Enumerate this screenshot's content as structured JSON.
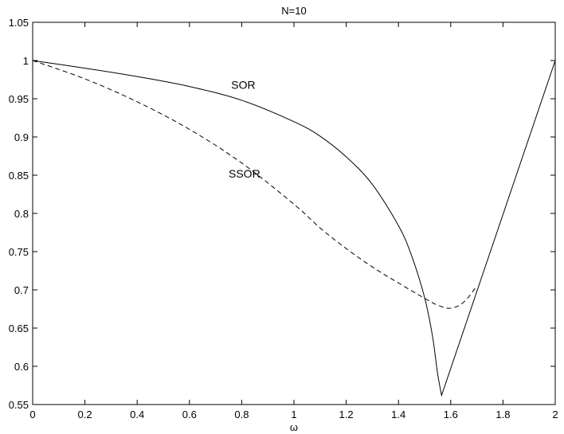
{
  "chart_data": {
    "type": "line",
    "title": "N=10",
    "xlabel": "ω",
    "ylabel": "",
    "xlim": [
      0,
      2
    ],
    "ylim": [
      0.55,
      1.05
    ],
    "grid": false,
    "x_ticks": [
      "0",
      "0.2",
      "0.4",
      "0.6",
      "0.8",
      "1",
      "1.2",
      "1.4",
      "1.6",
      "1.8",
      "2"
    ],
    "y_ticks": [
      "0.55",
      "0.6",
      "0.65",
      "0.7",
      "0.75",
      "0.8",
      "0.85",
      "0.9",
      "0.95",
      "1",
      "1.05"
    ],
    "series": [
      {
        "name": "SOR",
        "style": "solid",
        "color": "#000000",
        "x": [
          0,
          0.2,
          0.4,
          0.6,
          0.8,
          1.0,
          1.1,
          1.2,
          1.3,
          1.4,
          1.45,
          1.5,
          1.53,
          1.55,
          1.565,
          2.0
        ],
        "y": [
          1.0,
          0.99,
          0.979,
          0.966,
          0.948,
          0.92,
          0.901,
          0.874,
          0.838,
          0.784,
          0.745,
          0.69,
          0.64,
          0.59,
          0.562,
          1.0
        ]
      },
      {
        "name": "SSOR",
        "style": "dashed",
        "color": "#000000",
        "x": [
          0,
          0.2,
          0.4,
          0.6,
          0.8,
          1.0,
          1.1,
          1.2,
          1.3,
          1.4,
          1.5,
          1.55,
          1.6,
          1.65,
          1.7
        ],
        "y": [
          1.0,
          0.976,
          0.946,
          0.91,
          0.866,
          0.812,
          0.781,
          0.754,
          0.73,
          0.709,
          0.689,
          0.68,
          0.676,
          0.684,
          0.705
        ]
      }
    ],
    "annotations": [
      {
        "text": "SOR",
        "x": 0.76,
        "y": 0.963
      },
      {
        "text": "SSOR",
        "x": 0.75,
        "y": 0.847
      }
    ]
  }
}
